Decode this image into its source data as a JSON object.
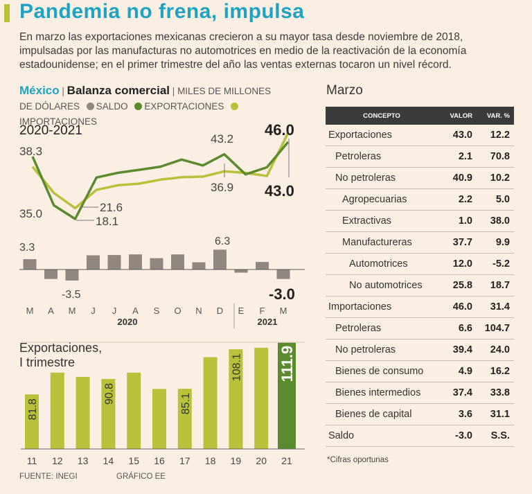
{
  "header": {
    "title": "Pandemia no frena, impulsa",
    "lead": "En marzo las exportaciones mexicanas crecieron a su mayor tasa desde noviembre de 2018, impulsadas por las manufacturas no automotrices en medio de la reactivación de la economía estadounidense; en el primer trimestre del año las ventas externas tocaron un nivel récord."
  },
  "colors": {
    "accent": "#1fa3c2",
    "saldo": "#8f8780",
    "exportaciones": "#5b8a2f",
    "importaciones": "#b8c13a",
    "bar_last": "#5b8a2f"
  },
  "chart_head": {
    "country": "México",
    "title": "Balanza comercial",
    "unit_a": "MILES DE MILLONES",
    "unit_b": "DE DÓLARES",
    "legend_saldo": "SALDO",
    "legend_export": "EXPORTACIONES",
    "legend_import": "IMPORTACIONES",
    "period": "2020-2021"
  },
  "chart_data": [
    {
      "type": "line",
      "title": "Balanza comercial",
      "subtitle": "2020-2021",
      "categories": [
        "M",
        "A",
        "M",
        "J",
        "J",
        "A",
        "S",
        "O",
        "N",
        "D",
        "E",
        "F",
        "M"
      ],
      "series": [
        {
          "name": "EXPORTACIONES",
          "values": [
            38.3,
            22.5,
            18.1,
            31.5,
            33.0,
            34.0,
            35.0,
            37.3,
            35.4,
            39.0,
            32.5,
            34.8,
            43.0
          ]
        },
        {
          "name": "IMPORTACIONES",
          "values": [
            35.0,
            26.5,
            21.6,
            27.5,
            29.0,
            29.5,
            30.8,
            31.6,
            31.8,
            33.5,
            33.0,
            32.0,
            46.0
          ]
        }
      ],
      "annotations": [
        {
          "label": "38.3"
        },
        {
          "label": "35.0"
        },
        {
          "label": "21.6"
        },
        {
          "label": "18.1"
        },
        {
          "label": "43.2"
        },
        {
          "label": "36.9"
        },
        {
          "label": "46.0"
        },
        {
          "label": "43.0"
        }
      ]
    },
    {
      "type": "bar",
      "title": "Saldo",
      "categories": [
        "M",
        "A",
        "M",
        "J",
        "J",
        "A",
        "S",
        "O",
        "N",
        "D",
        "E",
        "F",
        "M"
      ],
      "values": [
        3.3,
        -3.0,
        -3.5,
        4.5,
        4.6,
        4.8,
        3.6,
        4.8,
        2.3,
        6.3,
        -1.0,
        2.4,
        -3.0
      ],
      "labels": [
        {
          "label": "3.3"
        },
        {
          "label": "-3.5"
        },
        {
          "label": "6.3"
        },
        {
          "label": "-3.0"
        }
      ],
      "year_2020": "2020",
      "year_2021": "2021"
    },
    {
      "type": "bar",
      "title": "Exportaciones,",
      "title2": "I trimestre",
      "categories": [
        "11",
        "12",
        "13",
        "14",
        "15",
        "16",
        "17",
        "18",
        "19",
        "20",
        "21"
      ],
      "values": [
        81.8,
        94.5,
        92.0,
        90.8,
        94.5,
        85.0,
        85.1,
        103.5,
        108.1,
        109.0,
        111.9
      ],
      "labels": [
        "81.8",
        "",
        "",
        "90.8",
        "",
        "",
        "85.1",
        "",
        "108.1",
        "",
        "111.9"
      ],
      "ylim": [
        50,
        113
      ]
    }
  ],
  "table": {
    "title": "Marzo",
    "headers": [
      "CONCEPTO",
      "VALOR",
      "VAR. %"
    ],
    "rows": [
      {
        "concept": "Exportaciones",
        "level": 0,
        "valor": "43.0",
        "var": "12.2"
      },
      {
        "concept": "Petroleras",
        "level": 1,
        "valor": "2.1",
        "var": "70.8"
      },
      {
        "concept": "No petroleras",
        "level": 1,
        "valor": "40.9",
        "var": "10.2"
      },
      {
        "concept": "Agropecuarias",
        "level": 2,
        "valor": "2.2",
        "var": "5.0"
      },
      {
        "concept": "Extractivas",
        "level": 2,
        "valor": "1.0",
        "var": "38.0"
      },
      {
        "concept": "Manufactureras",
        "level": 2,
        "valor": "37.7",
        "var": "9.9"
      },
      {
        "concept": "Automotrices",
        "level": 3,
        "valor": "12.0",
        "var": "-5.2"
      },
      {
        "concept": "No automotrices",
        "level": 3,
        "valor": "25.8",
        "var": "18.7"
      },
      {
        "concept": "Importaciones",
        "level": 0,
        "valor": "46.0",
        "var": "31.4"
      },
      {
        "concept": "Petroleras",
        "level": 1,
        "valor": "6.6",
        "var": "104.7"
      },
      {
        "concept": "No petroleras",
        "level": 1,
        "valor": "39.4",
        "var": "24.0"
      },
      {
        "concept": "Bienes de consumo",
        "level": 1,
        "valor": "4.9",
        "var": "16.2"
      },
      {
        "concept": "Bienes intermedios",
        "level": 1,
        "valor": "37.4",
        "var": "33.8"
      },
      {
        "concept": "Bienes de capital",
        "level": 1,
        "valor": "3.6",
        "var": "31.1"
      },
      {
        "concept": "Saldo",
        "level": 0,
        "valor": "-3.0",
        "var": "S.S."
      }
    ],
    "note": "*Cifras oportunas"
  },
  "footer": {
    "source": "FUENTE: INEGI",
    "credit": "GRÁFICO EE"
  }
}
